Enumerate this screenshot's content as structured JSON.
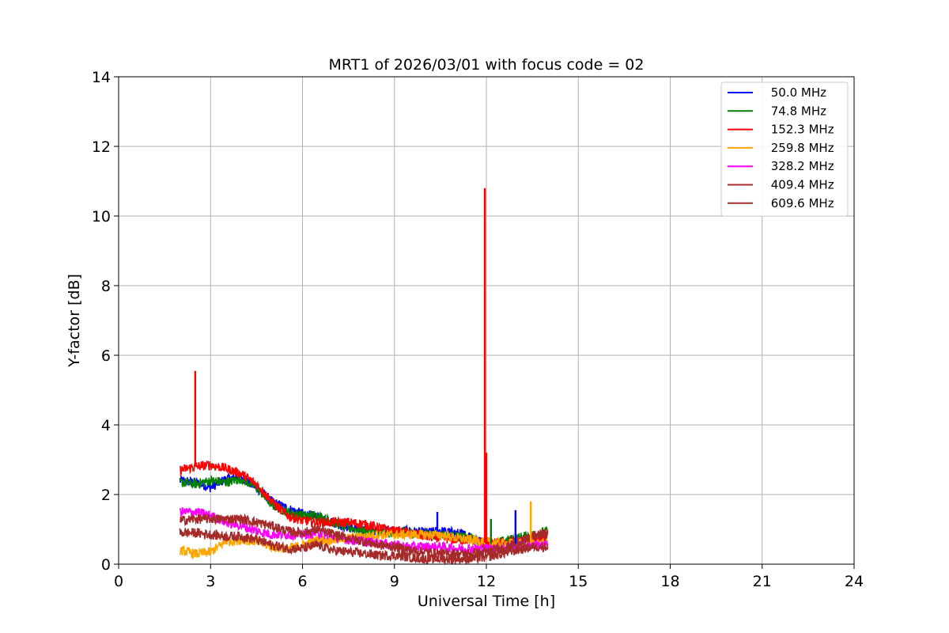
{
  "chart_data": {
    "type": "line",
    "title": "MRT1 of 2026/03/01 with focus code = 02",
    "xlabel": "Universal Time [h]",
    "ylabel": "Y-factor [dB]",
    "xlim": [
      0,
      24
    ],
    "ylim": [
      0,
      14
    ],
    "xticks": [
      0,
      3,
      6,
      9,
      12,
      15,
      18,
      21,
      24
    ],
    "yticks": [
      0,
      2,
      4,
      6,
      8,
      10,
      12,
      14
    ],
    "grid": true,
    "legend_position": "top-right",
    "x": [
      2.0,
      2.5,
      3.0,
      3.5,
      4.0,
      4.5,
      5.0,
      5.5,
      6.0,
      6.5,
      7.0,
      7.5,
      8.0,
      8.5,
      9.0,
      9.5,
      10.0,
      10.5,
      11.0,
      11.5,
      12.0,
      12.5,
      13.0,
      13.5,
      14.0
    ],
    "series": [
      {
        "name": " 50.0 MHz",
        "color": "#0000ff",
        "values": [
          2.4,
          2.35,
          2.2,
          2.45,
          2.5,
          2.2,
          1.8,
          1.6,
          1.45,
          1.35,
          1.2,
          1.05,
          1.0,
          0.95,
          0.95,
          0.95,
          0.9,
          0.95,
          0.9,
          0.8,
          0.55,
          0.55,
          0.6,
          0.7,
          0.8
        ]
      },
      {
        "name": " 74.8 MHz",
        "color": "#008000",
        "values": [
          2.35,
          2.3,
          2.4,
          2.35,
          2.45,
          2.2,
          1.7,
          1.5,
          1.4,
          1.4,
          1.2,
          1.05,
          0.95,
          0.9,
          0.9,
          0.9,
          0.85,
          0.85,
          0.8,
          0.75,
          0.55,
          0.65,
          0.75,
          0.85,
          0.95
        ]
      },
      {
        "name": " 152.3 MHz",
        "color": "#ff0000",
        "values": [
          2.7,
          2.8,
          2.85,
          2.75,
          2.6,
          2.3,
          1.8,
          1.4,
          1.25,
          1.2,
          1.2,
          1.2,
          1.15,
          1.05,
          0.95,
          0.9,
          0.8,
          0.75,
          0.7,
          0.7,
          0.6,
          0.6,
          0.65,
          0.7,
          0.75
        ]
      },
      {
        "name": " 259.8 MHz",
        "color": "#ffa500",
        "values": [
          0.4,
          0.3,
          0.35,
          0.65,
          0.7,
          0.65,
          0.5,
          0.45,
          0.55,
          0.7,
          0.7,
          0.75,
          0.8,
          0.85,
          0.85,
          0.85,
          0.85,
          0.85,
          0.75,
          0.7,
          0.65,
          0.6,
          0.6,
          0.6,
          0.6
        ]
      },
      {
        "name": " 328.2 MHz",
        "color": "#ff00ff",
        "values": [
          1.5,
          1.5,
          1.4,
          1.2,
          1.1,
          0.95,
          0.85,
          0.85,
          0.85,
          0.9,
          0.8,
          0.7,
          0.65,
          0.6,
          0.55,
          0.5,
          0.5,
          0.5,
          0.45,
          0.45,
          0.45,
          0.45,
          0.5,
          0.55,
          0.55
        ]
      },
      {
        "name": " 409.4 MHz",
        "color": "#a52a2a",
        "values": [
          1.25,
          1.3,
          1.3,
          1.3,
          1.3,
          1.2,
          1.1,
          0.95,
          0.9,
          1.0,
          0.85,
          0.75,
          0.65,
          0.55,
          0.5,
          0.4,
          0.35,
          0.3,
          0.3,
          0.3,
          0.35,
          0.45,
          0.6,
          0.8,
          0.9
        ]
      },
      {
        "name": " 609.6 MHz",
        "color": "#a52a2a",
        "values": [
          0.9,
          0.9,
          0.85,
          0.8,
          0.8,
          0.7,
          0.55,
          0.45,
          0.45,
          0.55,
          0.4,
          0.35,
          0.3,
          0.25,
          0.25,
          0.2,
          0.15,
          0.15,
          0.15,
          0.15,
          0.2,
          0.3,
          0.4,
          0.5,
          0.5
        ]
      }
    ],
    "annotations_spikes": [
      {
        "series": " 152.3 MHz",
        "x": 2.5,
        "y": 5.55
      },
      {
        "series": " 152.3 MHz",
        "x": 11.95,
        "y": 10.8
      },
      {
        "series": " 152.3 MHz",
        "x": 12.0,
        "y": 3.2
      },
      {
        "series": " 259.8 MHz",
        "x": 13.45,
        "y": 1.8
      },
      {
        "series": " 50.0 MHz",
        "x": 12.95,
        "y": 1.55
      },
      {
        "series": " 50.0 MHz",
        "x": 10.4,
        "y": 1.5
      },
      {
        "series": " 74.8 MHz",
        "x": 12.15,
        "y": 1.3
      }
    ]
  }
}
